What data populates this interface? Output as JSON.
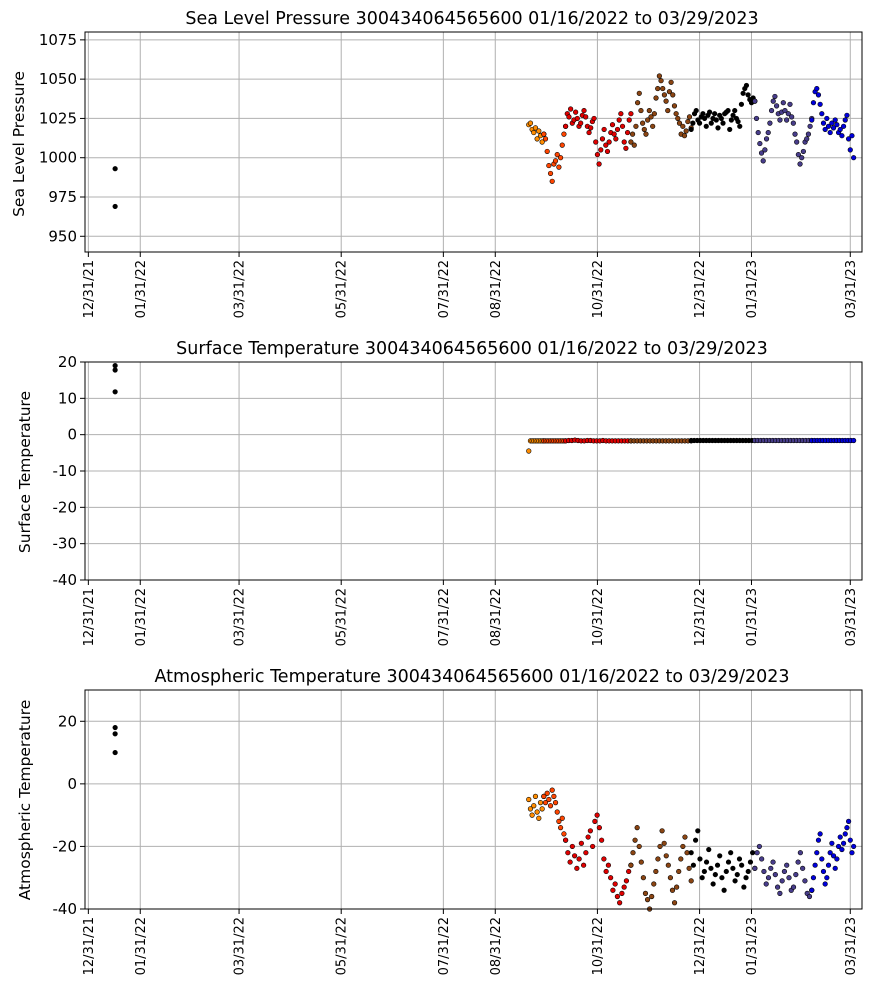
{
  "chart_data": [
    {
      "type": "scatter",
      "title": "Sea Level Pressure 300434064565600  01/16/2022 to 03/29/2023",
      "xlabel": "",
      "ylabel": "Sea Level Pressure",
      "xlim_days": [
        -2,
        462
      ],
      "ylim": [
        940,
        1080
      ],
      "yticks": [
        950,
        975,
        1000,
        1025,
        1050,
        1075
      ],
      "grid": true,
      "xticks": [
        {
          "day": 0,
          "label": "12/31/21"
        },
        {
          "day": 31,
          "label": "01/31/22"
        },
        {
          "day": 90,
          "label": "03/31/22"
        },
        {
          "day": 151,
          "label": "05/31/22"
        },
        {
          "day": 212,
          "label": "07/31/22"
        },
        {
          "day": 243,
          "label": "08/31/22"
        },
        {
          "day": 304,
          "label": "10/31/22"
        },
        {
          "day": 365,
          "label": "12/31/22"
        },
        {
          "day": 396,
          "label": "01/31/23"
        },
        {
          "day": 455,
          "label": "03/31/23"
        }
      ],
      "segments": [
        {
          "start": 16,
          "end": 16,
          "color": "#000000",
          "values": [
            969,
            993
          ]
        },
        {
          "start": 263,
          "end": 272,
          "color": "#ff8c00",
          "values": [
            1021,
            1022,
            1018,
            1016,
            1019,
            1012,
            1017,
            1014,
            1010,
            1015
          ]
        },
        {
          "start": 272,
          "end": 285,
          "color": "#ff4500",
          "values": [
            1015,
            1012,
            1004,
            995,
            990,
            985,
            996,
            998,
            1002,
            994,
            1000,
            1008,
            1015,
            1020
          ]
        },
        {
          "start": 285,
          "end": 324,
          "color": "#e00000",
          "values": [
            1020,
            1028,
            1026,
            1031,
            1022,
            1024,
            1029,
            1025,
            1020,
            1022,
            1027,
            1030,
            1026,
            1020,
            1016,
            1019,
            1023,
            1025,
            1010,
            1002,
            996,
            1005,
            1012,
            1018,
            1008,
            1004,
            1010,
            1016,
            1021,
            1015,
            1012,
            1018,
            1024,
            1028,
            1020,
            1010,
            1006,
            1016,
            1024,
            1028
          ]
        },
        {
          "start": 324,
          "end": 360,
          "color": "#8b4513",
          "values": [
            1010,
            1015,
            1008,
            1020,
            1035,
            1041,
            1030,
            1022,
            1018,
            1015,
            1024,
            1030,
            1026,
            1020,
            1028,
            1038,
            1044,
            1052,
            1049,
            1044,
            1040,
            1036,
            1030,
            1042,
            1048,
            1040,
            1033,
            1028,
            1025,
            1022,
            1015,
            1020,
            1014,
            1017,
            1023,
            1026,
            1019
          ]
        },
        {
          "start": 360,
          "end": 398,
          "color": "#000000",
          "values": [
            1018,
            1022,
            1028,
            1030,
            1024,
            1022,
            1026,
            1028,
            1025,
            1020,
            1027,
            1029,
            1022,
            1025,
            1028,
            1024,
            1019,
            1027,
            1025,
            1022,
            1028,
            1029,
            1030,
            1018,
            1024,
            1027,
            1030,
            1025,
            1023,
            1020,
            1034,
            1041,
            1044,
            1046,
            1040,
            1037,
            1035,
            1038,
            1036
          ]
        },
        {
          "start": 398,
          "end": 432,
          "color": "#483d8b",
          "values": [
            1036,
            1025,
            1016,
            1009,
            1003,
            998,
            1005,
            1012,
            1016,
            1022,
            1030,
            1036,
            1039,
            1033,
            1028,
            1024,
            1029,
            1035,
            1030,
            1024,
            1028,
            1034,
            1026,
            1022,
            1015,
            1010,
            1002,
            996,
            1000,
            1004,
            1010,
            1012,
            1015,
            1020,
            1025
          ]
        },
        {
          "start": 432,
          "end": 457,
          "color": "#0000dd",
          "values": [
            1024,
            1035,
            1042,
            1044,
            1040,
            1034,
            1028,
            1022,
            1018,
            1025,
            1020,
            1016,
            1022,
            1019,
            1024,
            1021,
            1016,
            1018,
            1014,
            1020,
            1024,
            1027,
            1012,
            1005,
            1014,
            1000
          ]
        }
      ]
    },
    {
      "type": "scatter",
      "title": "Surface Temperature 300434064565600  01/16/2022 to 03/29/2023",
      "xlabel": "",
      "ylabel": "Surface Temperature",
      "xlim_days": [
        -2,
        462
      ],
      "ylim": [
        -40,
        20
      ],
      "yticks": [
        -40,
        -30,
        -20,
        -10,
        0,
        10,
        20
      ],
      "grid": true,
      "xticks": [
        {
          "day": 0,
          "label": "12/31/21"
        },
        {
          "day": 31,
          "label": "01/31/22"
        },
        {
          "day": 90,
          "label": "03/31/22"
        },
        {
          "day": 151,
          "label": "05/31/22"
        },
        {
          "day": 212,
          "label": "07/31/22"
        },
        {
          "day": 243,
          "label": "08/31/22"
        },
        {
          "day": 304,
          "label": "10/31/22"
        },
        {
          "day": 365,
          "label": "12/31/22"
        },
        {
          "day": 396,
          "label": "01/31/23"
        },
        {
          "day": 455,
          "label": "03/31/23"
        }
      ],
      "segments": [
        {
          "start": 16,
          "end": 16,
          "color": "#000000",
          "values": [
            11.8,
            17.8,
            19.0
          ]
        },
        {
          "start": 263,
          "end": 272,
          "color": "#ff8c00",
          "values": [
            -4.5,
            -1.7,
            -1.7,
            -1.7,
            -1.7,
            -1.7,
            -1.7,
            -1.7,
            -1.7,
            -1.7
          ]
        },
        {
          "start": 272,
          "end": 285,
          "color": "#ff4500",
          "values": [
            -1.7,
            -1.7,
            -1.7,
            -1.7,
            -1.7,
            -1.7,
            -1.7,
            -1.7,
            -1.7,
            -1.7,
            -1.7,
            -1.7,
            -1.7,
            -1.7
          ]
        },
        {
          "start": 285,
          "end": 324,
          "color": "#e00000",
          "values": [
            -1.7,
            -1.6,
            -1.6,
            -1.5,
            -1.6,
            -1.7,
            -1.7,
            -1.6,
            -1.6,
            -1.7,
            -1.7,
            -1.7,
            -1.6,
            -1.7,
            -1.7,
            -1.7,
            -1.7,
            -1.7,
            -1.7,
            -1.7,
            -1.7,
            -1.7
          ]
        },
        {
          "start": 324,
          "end": 360,
          "color": "#8b4513",
          "values": [
            -1.7,
            -1.7,
            -1.7,
            -1.7,
            -1.7,
            -1.7,
            -1.7,
            -1.7,
            -1.7,
            -1.7,
            -1.7,
            -1.7,
            -1.7,
            -1.7,
            -1.7,
            -1.7,
            -1.7,
            -1.7,
            -1.7,
            -1.7
          ]
        },
        {
          "start": 360,
          "end": 398,
          "color": "#000000",
          "values": [
            -1.6,
            -1.6,
            -1.6,
            -1.6,
            -1.6,
            -1.6,
            -1.6,
            -1.6,
            -1.6,
            -1.6,
            -1.6,
            -1.6,
            -1.6,
            -1.6,
            -1.6,
            -1.6,
            -1.6,
            -1.6,
            -1.6,
            -1.6,
            -1.6,
            -1.6
          ]
        },
        {
          "start": 398,
          "end": 432,
          "color": "#483d8b",
          "values": [
            -1.6,
            -1.6,
            -1.6,
            -1.6,
            -1.6,
            -1.6,
            -1.6,
            -1.6,
            -1.6,
            -1.6,
            -1.6,
            -1.6,
            -1.6,
            -1.6,
            -1.6,
            -1.6,
            -1.6,
            -1.6,
            -1.6,
            -1.6
          ]
        },
        {
          "start": 432,
          "end": 457,
          "color": "#0000dd",
          "values": [
            -1.6,
            -1.6,
            -1.6,
            -1.6,
            -1.6,
            -1.6,
            -1.6,
            -1.6,
            -1.6,
            -1.6,
            -1.6,
            -1.6,
            -1.6,
            -1.6,
            -1.6,
            -1.6
          ]
        }
      ]
    },
    {
      "type": "scatter",
      "title": "Atmospheric Temperature 300434064565600  01/16/2022 to 03/29/2023",
      "xlabel": "",
      "ylabel": "Atmospheric Temperature",
      "xlim_days": [
        -2,
        462
      ],
      "ylim": [
        -40,
        30
      ],
      "yticks": [
        -40,
        -20,
        0,
        20
      ],
      "grid": true,
      "xticks": [
        {
          "day": 0,
          "label": "12/31/21"
        },
        {
          "day": 31,
          "label": "01/31/22"
        },
        {
          "day": 90,
          "label": "03/31/22"
        },
        {
          "day": 151,
          "label": "05/31/22"
        },
        {
          "day": 212,
          "label": "07/31/22"
        },
        {
          "day": 243,
          "label": "08/31/22"
        },
        {
          "day": 304,
          "label": "10/31/22"
        },
        {
          "day": 365,
          "label": "12/31/22"
        },
        {
          "day": 396,
          "label": "01/31/23"
        },
        {
          "day": 455,
          "label": "03/31/23"
        }
      ],
      "segments": [
        {
          "start": 16,
          "end": 16,
          "color": "#000000",
          "values": [
            10,
            16,
            18
          ]
        },
        {
          "start": 263,
          "end": 272,
          "color": "#ff8c00",
          "values": [
            -5,
            -8,
            -10,
            -7,
            -4,
            -9,
            -11,
            -6,
            -8,
            -4
          ]
        },
        {
          "start": 272,
          "end": 285,
          "color": "#ff4500",
          "values": [
            -4,
            -6,
            -3,
            -5,
            -7,
            -2,
            -4,
            -6,
            -9,
            -12,
            -14,
            -11,
            -16,
            -18
          ]
        },
        {
          "start": 285,
          "end": 324,
          "color": "#e00000",
          "values": [
            -18,
            -22,
            -25,
            -20,
            -23,
            -27,
            -24,
            -19,
            -26,
            -22,
            -17,
            -15,
            -20,
            -12,
            -10,
            -14,
            -18,
            -24,
            -28,
            -26,
            -30,
            -34,
            -32,
            -36,
            -38,
            -35,
            -33,
            -31,
            -28,
            -26
          ]
        },
        {
          "start": 324,
          "end": 360,
          "color": "#8b4513",
          "values": [
            -26,
            -22,
            -18,
            -14,
            -20,
            -25,
            -30,
            -35,
            -37,
            -40,
            -36,
            -32,
            -28,
            -24,
            -20,
            -15,
            -19,
            -23,
            -26,
            -30,
            -34,
            -38,
            -33,
            -28,
            -24,
            -20,
            -17,
            -22,
            -27,
            -31
          ]
        },
        {
          "start": 360,
          "end": 398,
          "color": "#000000",
          "values": [
            -22,
            -26,
            -18,
            -15,
            -24,
            -30,
            -28,
            -25,
            -21,
            -27,
            -32,
            -29,
            -26,
            -23,
            -30,
            -34,
            -28,
            -25,
            -22,
            -27,
            -31,
            -29,
            -24,
            -26,
            -33,
            -30,
            -28,
            -25,
            -22,
            -27
          ]
        },
        {
          "start": 398,
          "end": 432,
          "color": "#483d8b",
          "values": [
            -27,
            -22,
            -20,
            -24,
            -28,
            -32,
            -30,
            -27,
            -25,
            -29,
            -33,
            -35,
            -31,
            -28,
            -26,
            -30,
            -34,
            -33,
            -29,
            -25,
            -22,
            -27,
            -31,
            -35,
            -36,
            -34
          ]
        },
        {
          "start": 432,
          "end": 457,
          "color": "#0000dd",
          "values": [
            -34,
            -30,
            -26,
            -22,
            -18,
            -16,
            -24,
            -28,
            -32,
            -30,
            -26,
            -22,
            -19,
            -23,
            -27,
            -24,
            -20,
            -17,
            -21,
            -19,
            -16,
            -14,
            -12,
            -18,
            -22,
            -20
          ]
        }
      ]
    }
  ]
}
